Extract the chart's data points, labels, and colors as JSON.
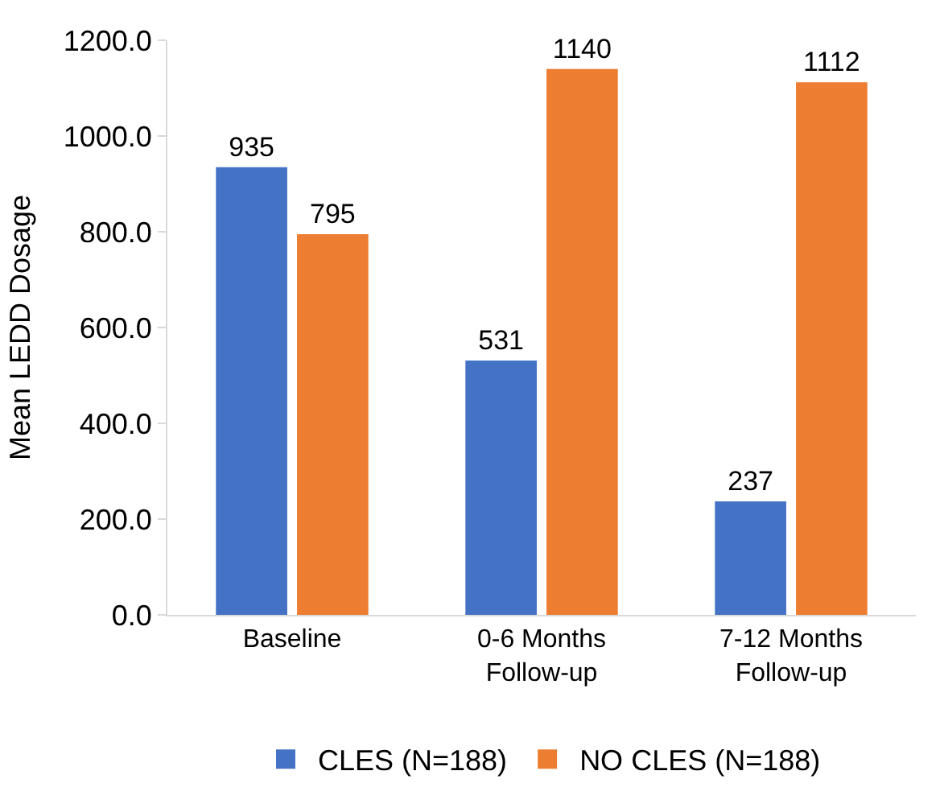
{
  "chart_data": {
    "type": "bar",
    "ylabel": "Mean LEDD Dosage",
    "categories": [
      "Baseline",
      "0-6 Months\nFollow-up",
      "7-12 Months\nFollow-up"
    ],
    "series": [
      {
        "name": "CLES (N=188)",
        "color": "#4472c4",
        "values": [
          935,
          531,
          237
        ]
      },
      {
        "name": "NO CLES (N=188)",
        "color": "#ed7d31",
        "values": [
          795,
          1140,
          1112
        ]
      }
    ],
    "ylim": [
      0,
      1200
    ],
    "yticks": [
      {
        "value": 0,
        "label": "0.0"
      },
      {
        "value": 200,
        "label": "200.0"
      },
      {
        "value": 400,
        "label": "400.0"
      },
      {
        "value": 600,
        "label": "600.0"
      },
      {
        "value": 800,
        "label": "800.0"
      },
      {
        "value": 1000,
        "label": "1000.0"
      },
      {
        "value": 1200,
        "label": "1200.0"
      }
    ],
    "data_labels": true,
    "legend": "bottom"
  }
}
